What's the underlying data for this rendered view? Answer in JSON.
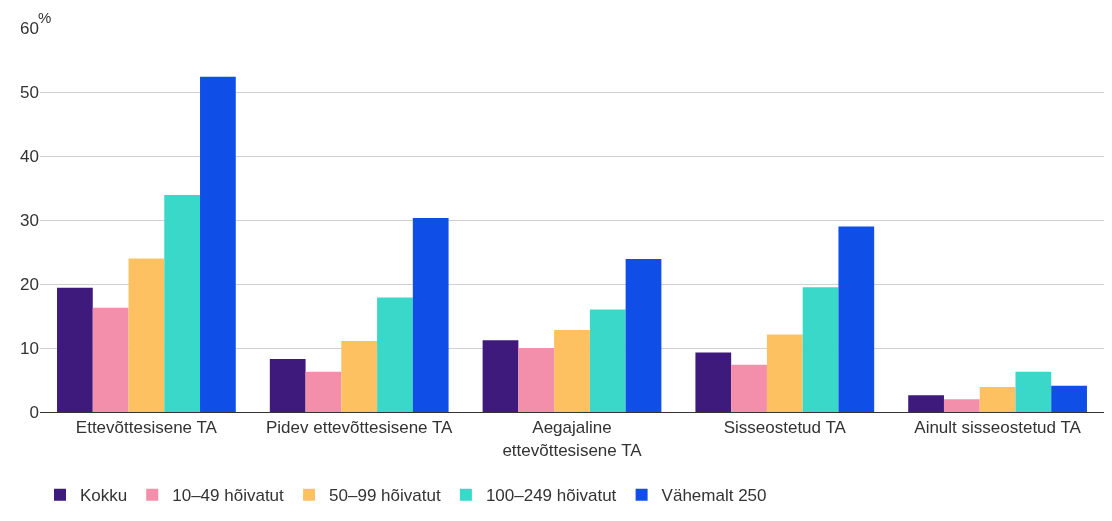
{
  "chart_data": {
    "type": "bar",
    "ylabel": "%",
    "categories": [
      "Ettevõttesisene TA",
      "Pidev ettevõttesisene TA",
      "Aegajaline ettevõttesisene TA",
      "Sisseostetud TA",
      "Ainult sisseostetud TA"
    ],
    "series": [
      {
        "name": "Kokku",
        "color": "#3d1a7c",
        "values": [
          19.4,
          8.3,
          11.2,
          9.3,
          2.6
        ]
      },
      {
        "name": "10–49 hõivatut",
        "color": "#f48fab",
        "values": [
          16.3,
          6.3,
          10.0,
          7.4,
          2.0
        ]
      },
      {
        "name": "50–99 hõivatut",
        "color": "#fdc162",
        "values": [
          24.0,
          11.1,
          12.8,
          12.1,
          3.9
        ]
      },
      {
        "name": "100–249 hõivatut",
        "color": "#3ad8c9",
        "values": [
          33.9,
          17.9,
          16.0,
          19.5,
          6.3
        ]
      },
      {
        "name": "Vähemalt 250",
        "color": "#0f4fe8",
        "values": [
          52.4,
          30.3,
          23.9,
          29.0,
          4.1
        ]
      }
    ],
    "ylim": [
      0,
      60
    ],
    "yticks": [
      0,
      10,
      20,
      30,
      40,
      50,
      60
    ],
    "grid": "y",
    "legend": "bottom"
  }
}
